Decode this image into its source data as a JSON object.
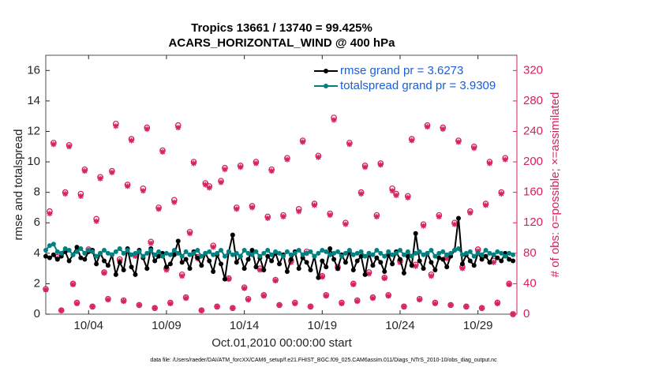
{
  "chart_data": {
    "type": "line",
    "title": "Tropics 13661 / 13740 = 99.425%",
    "subtitle": "ACARS_HORIZONTAL_WIND @ 400 hPa",
    "x_label": "Oct.01,2010 00:00:00 start",
    "y_label": "rmse and totalspread",
    "y2_label": "# of obs: o=possible; ×=assimilated",
    "footnote": "data file: /Users/raeder/DAI/ATM_forcXX/CAM6_setup/f.e21.FHIST_BGC.f09_025.CAM6assim.011/Diags_NTrS_2010-10/obs_diag_output.nc",
    "xlim": [
      0.25,
      30.5
    ],
    "xticks": [
      {
        "value": 3,
        "label": "10/04"
      },
      {
        "value": 8,
        "label": "10/09"
      },
      {
        "value": 13,
        "label": "10/14"
      },
      {
        "value": 18,
        "label": "10/19"
      },
      {
        "value": 23,
        "label": "10/24"
      },
      {
        "value": 28,
        "label": "10/29"
      }
    ],
    "ylim": [
      0,
      17
    ],
    "yticks": [
      0,
      2,
      4,
      6,
      8,
      10,
      12,
      14,
      16
    ],
    "y2lim": [
      0,
      340
    ],
    "y2ticks": [
      0,
      40,
      80,
      120,
      160,
      200,
      240,
      280,
      320
    ],
    "legend": "upper right",
    "x": [
      0.25,
      0.5,
      0.75,
      1,
      1.25,
      1.5,
      1.75,
      2,
      2.25,
      2.5,
      2.75,
      3,
      3.25,
      3.5,
      3.75,
      4,
      4.25,
      4.5,
      4.75,
      5,
      5.25,
      5.5,
      5.75,
      6,
      6.25,
      6.5,
      6.75,
      7,
      7.25,
      7.5,
      7.75,
      8,
      8.25,
      8.5,
      8.75,
      9,
      9.25,
      9.5,
      9.75,
      10,
      10.25,
      10.5,
      10.75,
      11,
      11.25,
      11.5,
      11.75,
      12,
      12.25,
      12.5,
      12.75,
      13,
      13.25,
      13.5,
      13.75,
      14,
      14.25,
      14.5,
      14.75,
      15,
      15.25,
      15.5,
      15.75,
      16,
      16.25,
      16.5,
      16.75,
      17,
      17.25,
      17.5,
      17.75,
      18,
      18.25,
      18.5,
      18.75,
      19,
      19.25,
      19.5,
      19.75,
      20,
      20.25,
      20.5,
      20.75,
      21,
      21.25,
      21.5,
      21.75,
      22,
      22.25,
      22.5,
      22.75,
      23,
      23.25,
      23.5,
      23.75,
      24,
      24.25,
      24.5,
      24.75,
      25,
      25.25,
      25.5,
      25.75,
      26,
      26.25,
      26.5,
      26.75,
      27,
      27.25,
      27.5,
      27.75,
      28,
      28.25,
      28.5,
      28.75,
      29,
      29.25,
      29.5,
      29.75,
      30,
      30.25
    ],
    "series": [
      {
        "name": "rmse grand pr = 3.6273",
        "color": "#000000",
        "marker": "dot",
        "line": true,
        "values": [
          3.8,
          3.7,
          3.9,
          3.6,
          3.8,
          4.1,
          3.5,
          3.9,
          4.4,
          3.7,
          3.6,
          4.1,
          4.2,
          3.3,
          4.0,
          3.5,
          3.2,
          3.9,
          2.6,
          3.4,
          2.9,
          4.3,
          3.1,
          2.6,
          4.2,
          3.7,
          3.0,
          4.3,
          3.5,
          3.8,
          4.0,
          3.1,
          3.3,
          3.9,
          4.8,
          3.4,
          3.6,
          3.0,
          4.1,
          3.7,
          3.2,
          4.0,
          3.5,
          2.8,
          3.9,
          3.3,
          2.3,
          4.1,
          5.2,
          3.4,
          3.8,
          3.0,
          3.6,
          4.2,
          3.1,
          3.7,
          2.9,
          3.8,
          3.5,
          4.0,
          3.3,
          3.9,
          2.8,
          3.6,
          4.1,
          3.0,
          3.7,
          3.4,
          2.9,
          3.8,
          2.4,
          3.5,
          3.1,
          4.3,
          3.6,
          3.0,
          3.9,
          3.4,
          4.1,
          2.9,
          3.5,
          3.8,
          2.6,
          4.0,
          3.2,
          3.7,
          3.4,
          2.8,
          3.9,
          3.3,
          4.1,
          3.6,
          2.7,
          3.8,
          3.2,
          5.3,
          3.5,
          3.0,
          4.0,
          3.4,
          2.9,
          3.7,
          3.6,
          3.1,
          3.8,
          4.2,
          6.3,
          3.3,
          3.9,
          3.5,
          3.2,
          4.0,
          3.6,
          3.8,
          3.4,
          3.9,
          3.7,
          3.5,
          4.0,
          3.6,
          3.5
        ]
      },
      {
        "name": "totalspread grand pr = 3.9309",
        "color": "#008080",
        "marker": "dot",
        "line": true,
        "values": [
          4.2,
          4.5,
          4.6,
          4.1,
          4.0,
          4.3,
          4.2,
          3.9,
          4.1,
          4.3,
          4.0,
          4.2,
          4.1,
          3.8,
          4.0,
          4.2,
          4.0,
          3.9,
          4.1,
          4.3,
          4.0,
          4.2,
          3.9,
          4.0,
          4.1,
          3.8,
          4.0,
          4.2,
          3.9,
          4.1,
          3.8,
          4.0,
          3.9,
          4.2,
          4.0,
          3.8,
          4.1,
          3.9,
          4.0,
          4.2,
          3.8,
          4.0,
          4.1,
          3.9,
          4.0,
          4.2,
          3.8,
          4.1,
          3.9,
          4.0,
          3.8,
          4.2,
          4.0,
          3.9,
          4.1,
          3.8,
          4.0,
          4.2,
          3.9,
          4.1,
          4.0,
          3.8,
          4.1,
          3.9,
          4.0,
          4.2,
          3.9,
          4.0,
          4.1,
          3.8,
          4.0,
          4.2,
          4.1,
          3.9,
          4.0,
          4.1,
          3.8,
          4.0,
          4.2,
          3.9,
          4.0,
          4.1,
          3.8,
          4.0,
          3.9,
          4.2,
          4.0,
          3.8,
          4.1,
          3.9,
          4.0,
          4.2,
          3.9,
          4.1,
          3.8,
          4.0,
          4.1,
          3.9,
          4.0,
          4.2,
          3.8,
          4.0,
          4.1,
          3.9,
          4.0,
          4.2,
          4.3,
          3.9,
          4.0,
          4.1,
          3.8,
          4.0,
          3.9,
          4.2,
          4.0,
          3.9,
          4.1,
          4.0,
          3.8,
          4.0,
          3.9
        ]
      },
      {
        "color": "#d6225d",
        "marker": "o",
        "line": false,
        "axis": "y2",
        "values": [
          33,
          135,
          225,
          75,
          5,
          160,
          222,
          40,
          15,
          158,
          190,
          85,
          10,
          125,
          180,
          55,
          20,
          188,
          250,
          72,
          18,
          170,
          230,
          78,
          12,
          165,
          245,
          95,
          8,
          140,
          215,
          60,
          15,
          150,
          248,
          52,
          22,
          108,
          200,
          75,
          5,
          172,
          168,
          90,
          10,
          175,
          192,
          47,
          8,
          140,
          195,
          35,
          20,
          142,
          200,
          60,
          25,
          128,
          190,
          45,
          12,
          130,
          205,
          70,
          15,
          138,
          228,
          82,
          10,
          145,
          208,
          50,
          25,
          132,
          258,
          62,
          15,
          120,
          225,
          40,
          18,
          160,
          195,
          55,
          22,
          130,
          198,
          48,
          25,
          165,
          158,
          70,
          10,
          155,
          230,
          65,
          20,
          118,
          248,
          52,
          15,
          130,
          245,
          75,
          12,
          120,
          228,
          62,
          10,
          135,
          220,
          85,
          8,
          145,
          200,
          70,
          15,
          160,
          205,
          40,
          0
        ]
      },
      {
        "color": "#d6225d",
        "marker": "star",
        "line": false,
        "axis": "y2",
        "values": [
          32,
          132,
          223,
          73,
          5,
          158,
          220,
          39,
          14,
          155,
          188,
          83,
          10,
          122,
          178,
          54,
          19,
          186,
          247,
          70,
          17,
          168,
          228,
          76,
          12,
          162,
          243,
          93,
          8,
          138,
          213,
          58,
          14,
          147,
          245,
          50,
          21,
          106,
          198,
          73,
          5,
          170,
          166,
          88,
          10,
          173,
          190,
          46,
          8,
          138,
          193,
          34,
          19,
          140,
          198,
          58,
          24,
          126,
          188,
          44,
          12,
          128,
          203,
          68,
          14,
          135,
          226,
          80,
          10,
          143,
          206,
          49,
          24,
          130,
          255,
          60,
          14,
          118,
          223,
          39,
          17,
          158,
          193,
          53,
          21,
          128,
          196,
          47,
          24,
          162,
          156,
          68,
          10,
          153,
          228,
          63,
          19,
          116,
          246,
          50,
          14,
          128,
          243,
          73,
          12,
          118,
          226,
          60,
          10,
          133,
          218,
          83,
          8,
          143,
          198,
          68,
          14,
          158,
          203,
          39,
          0
        ]
      }
    ]
  }
}
